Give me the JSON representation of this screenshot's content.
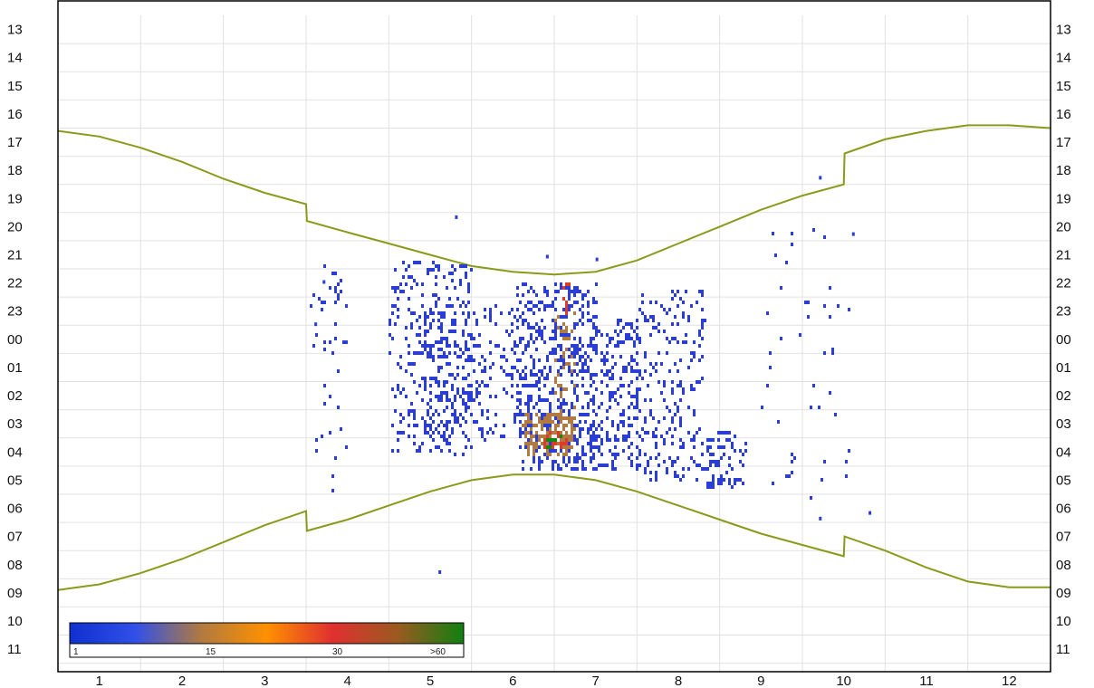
{
  "chart_data": {
    "type": "heatmap",
    "title": "",
    "xlabel": "",
    "ylabel": "",
    "x_tick_labels": [
      "1",
      "2",
      "3",
      "4",
      "5",
      "6",
      "7",
      "8",
      "9",
      "10",
      "11",
      "12"
    ],
    "y_tick_labels": [
      "13",
      "14",
      "15",
      "16",
      "17",
      "18",
      "19",
      "20",
      "21",
      "22",
      "23",
      "00",
      "01",
      "02",
      "03",
      "04",
      "05",
      "06",
      "07",
      "08",
      "09",
      "10",
      "11"
    ],
    "grid": true,
    "colorbar": {
      "colors": [
        "#1030d0",
        "#3050e8",
        "#b07a40",
        "#ff9000",
        "#e03030",
        "#9a5a20",
        "#108010"
      ],
      "tick_labels": [
        "1",
        "15",
        "30",
        ">60"
      ],
      "placement": "bottom-left"
    },
    "boundary_curves": {
      "color": "#8a9a1a",
      "upper": [
        [
          1,
          16.6
        ],
        [
          1.5,
          16.8
        ],
        [
          2,
          17.2
        ],
        [
          2.5,
          17.7
        ],
        [
          3,
          18.3
        ],
        [
          3.5,
          18.8
        ],
        [
          4,
          19.2
        ],
        [
          4.01,
          19.8
        ],
        [
          4.5,
          20.2
        ],
        [
          5,
          20.6
        ],
        [
          5.5,
          21.0
        ],
        [
          6,
          21.4
        ],
        [
          6.5,
          21.6
        ],
        [
          7,
          21.7
        ],
        [
          7.5,
          21.6
        ],
        [
          8,
          21.2
        ],
        [
          8.5,
          20.6
        ],
        [
          9,
          20.0
        ],
        [
          9.5,
          19.4
        ],
        [
          10,
          18.9
        ],
        [
          10.5,
          18.5
        ],
        [
          10.51,
          17.4
        ],
        [
          11,
          16.9
        ],
        [
          11.5,
          16.6
        ],
        [
          12,
          16.4
        ],
        [
          12.5,
          16.4
        ],
        [
          13,
          16.5
        ]
      ],
      "lower": [
        [
          1,
          32.9
        ],
        [
          1.5,
          32.7
        ],
        [
          2,
          32.3
        ],
        [
          2.5,
          31.8
        ],
        [
          3,
          31.2
        ],
        [
          3.5,
          30.6
        ],
        [
          4,
          30.1
        ],
        [
          4.01,
          30.8
        ],
        [
          4.5,
          30.4
        ],
        [
          5,
          29.9
        ],
        [
          5.5,
          29.4
        ],
        [
          6,
          29.0
        ],
        [
          6.5,
          28.8
        ],
        [
          7,
          28.8
        ],
        [
          7.5,
          29.0
        ],
        [
          8,
          29.4
        ],
        [
          8.5,
          29.9
        ],
        [
          9,
          30.4
        ],
        [
          9.5,
          30.9
        ],
        [
          10,
          31.3
        ],
        [
          10.5,
          31.7
        ],
        [
          10.51,
          31.0
        ],
        [
          11,
          31.5
        ],
        [
          11.5,
          32.1
        ],
        [
          12,
          32.6
        ],
        [
          12.5,
          32.8
        ],
        [
          13,
          32.8
        ]
      ]
    },
    "density_clusters": [
      {
        "x": [
          4.0,
          4.5
        ],
        "y": [
          21.3,
          24.5
        ],
        "n": 30,
        "level": 1
      },
      {
        "x": [
          4.1,
          4.5
        ],
        "y": [
          25.0,
          29.5
        ],
        "n": 14,
        "level": 1
      },
      {
        "x": [
          5.0,
          6.0
        ],
        "y": [
          21.2,
          28.0
        ],
        "n": 320,
        "level": 1
      },
      {
        "x": [
          5.4,
          6.6
        ],
        "y": [
          22.8,
          27.6
        ],
        "n": 240,
        "level": 1
      },
      {
        "x": [
          6.55,
          7.5
        ],
        "y": [
          22.0,
          28.6
        ],
        "n": 520,
        "level": 1
      },
      {
        "x": [
          7.4,
          8.0
        ],
        "y": [
          23.2,
          28.6
        ],
        "n": 220,
        "level": 1
      },
      {
        "x": [
          8.0,
          8.8
        ],
        "y": [
          22.2,
          29.0
        ],
        "n": 220,
        "level": 1
      },
      {
        "x": [
          8.8,
          9.3
        ],
        "y": [
          27.2,
          29.3
        ],
        "n": 70,
        "level": 1
      },
      {
        "x": [
          9.5,
          10.6
        ],
        "y": [
          19.8,
          29.6
        ],
        "n": 45,
        "level": 1
      },
      {
        "x": [
          6.6,
          7.2
        ],
        "y": [
          26.6,
          28.0
        ],
        "n": 140,
        "level": 2
      },
      {
        "x": [
          7.0,
          7.25
        ],
        "y": [
          22.8,
          27.4
        ],
        "n": 60,
        "level": 2
      },
      {
        "x": [
          6.85,
          7.15
        ],
        "y": [
          27.2,
          27.9
        ],
        "n": 30,
        "level": 3
      },
      {
        "x": [
          6.9,
          7.1
        ],
        "y": [
          27.4,
          27.8
        ],
        "n": 10,
        "level": 4
      },
      {
        "x": [
          7.1,
          7.15
        ],
        "y": [
          21.8,
          23.2
        ],
        "n": 10,
        "level": 3
      }
    ],
    "isolated_points": [
      [
        5.8,
        19.6
      ],
      [
        6.9,
        21.0
      ],
      [
        7.5,
        21.1
      ],
      [
        10.2,
        18.2
      ],
      [
        5.6,
        32.2
      ],
      [
        10.2,
        30.3
      ],
      [
        10.8,
        30.1
      ],
      [
        4.2,
        21.9
      ],
      [
        4.1,
        23.4
      ],
      [
        10.6,
        20.2
      ]
    ]
  }
}
